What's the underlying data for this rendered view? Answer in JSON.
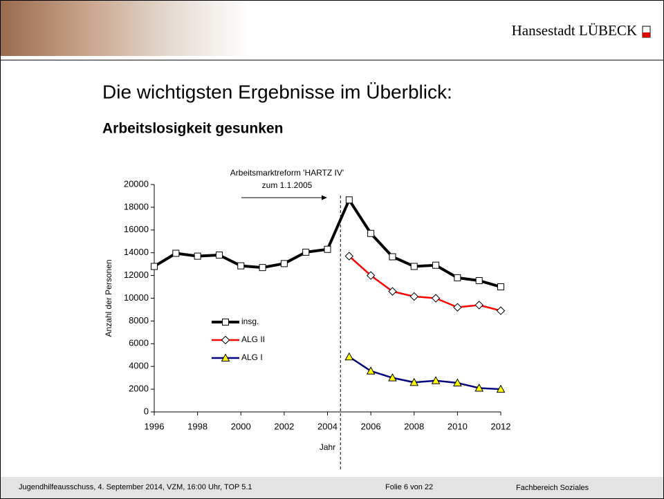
{
  "header": {
    "brand": "Hansestadt LÜBECK"
  },
  "slide": {
    "title": "Die wichtigsten Ergebnisse im Überblick:",
    "subtitle": "Arbeitslosigkeit gesunken"
  },
  "chart_data": {
    "type": "line",
    "annotation": [
      "Arbeitsmarktreform 'HARTZ IV'",
      "zum 1.1.2005"
    ],
    "x_label": "Jahr",
    "y_label": "Anzahl der Personen",
    "x": [
      1996,
      1997,
      1998,
      1999,
      2000,
      2001,
      2002,
      2003,
      2004,
      2005,
      2006,
      2007,
      2008,
      2009,
      2010,
      2011,
      2012
    ],
    "series": [
      {
        "name": "insg.",
        "color": "#000000",
        "marker": "square",
        "marker_color": "#ffffff",
        "values": [
          12800,
          13950,
          13700,
          13800,
          12850,
          12700,
          13050,
          14050,
          14300,
          18650,
          15700,
          13650,
          12800,
          12900,
          11800,
          11550,
          11000
        ]
      },
      {
        "name": "ALG II",
        "color": "#ff0000",
        "marker": "diamond",
        "marker_color": "#ffffff",
        "values": [
          null,
          null,
          null,
          null,
          null,
          null,
          null,
          null,
          null,
          13700,
          12000,
          10600,
          10150,
          10000,
          9200,
          9400,
          8900
        ]
      },
      {
        "name": "ALG I",
        "color": "#000080",
        "marker": "triangle",
        "marker_color": "#ffff00",
        "values": [
          null,
          null,
          null,
          null,
          null,
          null,
          null,
          null,
          null,
          4850,
          3600,
          3000,
          2600,
          2750,
          2550,
          2100,
          2000
        ]
      }
    ],
    "xlim": [
      1996,
      2012
    ],
    "xticks": [
      1996,
      1998,
      2000,
      2002,
      2004,
      2006,
      2008,
      2010,
      2012
    ],
    "ylim": [
      0,
      20000
    ],
    "yticks": [
      0,
      2000,
      4000,
      6000,
      8000,
      10000,
      12000,
      14000,
      16000,
      18000,
      20000
    ],
    "grid": false,
    "legend": "center-left"
  },
  "footer": {
    "meeting": "Jugendhilfeausschuss, 4. September 2014, VZM, 16:00 Uhr, TOP 5.1",
    "page": "Folie 6 von 22",
    "department": "Fachbereich Soziales"
  }
}
